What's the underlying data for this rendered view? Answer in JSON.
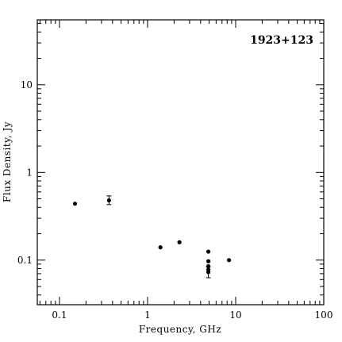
{
  "chart_data": {
    "type": "scatter",
    "title": "1923+123",
    "xlabel": "Frequency, GHz",
    "ylabel": "Flux Density, Jy",
    "xscale": "log",
    "yscale": "log",
    "xlim": [
      0.056,
      100
    ],
    "ylim": [
      0.031,
      55
    ],
    "x_tick_labels": [
      "0.1",
      "1",
      "10",
      "100"
    ],
    "y_tick_labels": [
      "0.1",
      "1",
      "10"
    ],
    "title_position": "top-right",
    "grid": false,
    "points": [
      {
        "x": 0.15,
        "y": 0.44
      },
      {
        "x": 0.365,
        "y": 0.48,
        "yerr_low": 0.43,
        "yerr_high": 0.54
      },
      {
        "x": 1.4,
        "y": 0.14
      },
      {
        "x": 2.3,
        "y": 0.16
      },
      {
        "x": 4.9,
        "y": 0.125
      },
      {
        "x": 4.9,
        "y": 0.097
      },
      {
        "x": 4.9,
        "y": 0.085
      },
      {
        "x": 4.9,
        "y": 0.078
      },
      {
        "x": 4.9,
        "y": 0.073,
        "yerr_low": 0.063,
        "yerr_high": 0.084
      },
      {
        "x": 8.4,
        "y": 0.1
      }
    ]
  }
}
